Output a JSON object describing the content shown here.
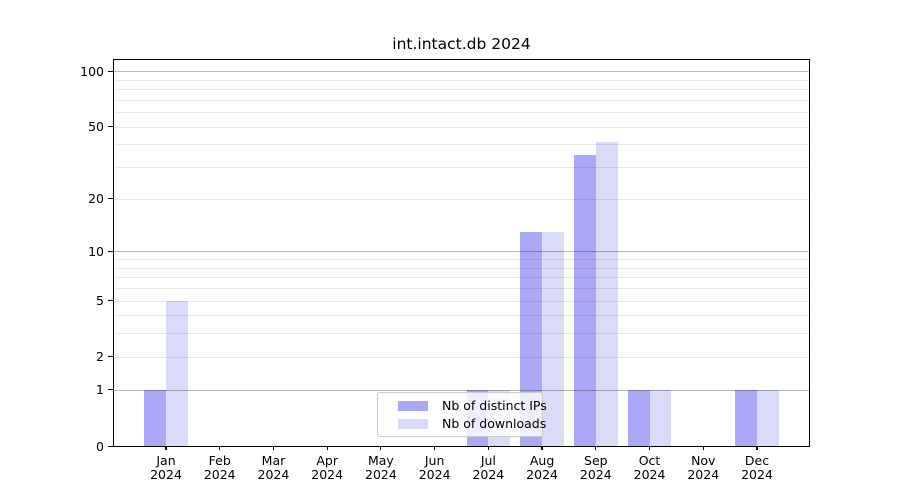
{
  "chart_data": {
    "type": "bar",
    "title": "int.intact.db 2024",
    "categories": [
      "Jan",
      "Feb",
      "Mar",
      "Apr",
      "May",
      "Jun",
      "Jul",
      "Aug",
      "Sep",
      "Oct",
      "Nov",
      "Dec"
    ],
    "year_label": "2024",
    "series": [
      {
        "name": "Nb of distinct IPs",
        "color": "#a9a9f7",
        "values": [
          1,
          0,
          0,
          0,
          0,
          0,
          1,
          13,
          35,
          1,
          0,
          1
        ]
      },
      {
        "name": "Nb of downloads",
        "color": "#dadaf9",
        "values": [
          5,
          0,
          0,
          0,
          0,
          0,
          1,
          13,
          41,
          1,
          0,
          1
        ]
      }
    ],
    "y_scale": "log1p",
    "ylim": [
      0,
      115
    ],
    "y_ticks": [
      0,
      1,
      2,
      5,
      10,
      20,
      50,
      100
    ],
    "y_tick_labels": [
      "0",
      "1",
      "2",
      "5",
      "10",
      "20",
      "50",
      "100"
    ],
    "y_major_gridlines": [
      1,
      10,
      100
    ],
    "y_minor_gridlines": [
      2,
      3,
      4,
      5,
      6,
      7,
      8,
      9,
      20,
      30,
      40,
      50,
      60,
      70,
      80,
      90
    ],
    "grid": true,
    "legend_position": "bottom-center",
    "colors": {
      "distinct_ips": "#a9a9f7",
      "downloads": "#dadaf9",
      "minor_grid": "#e8e8e8",
      "major_grid": "#b8b8b8",
      "spine": "#000000"
    }
  }
}
